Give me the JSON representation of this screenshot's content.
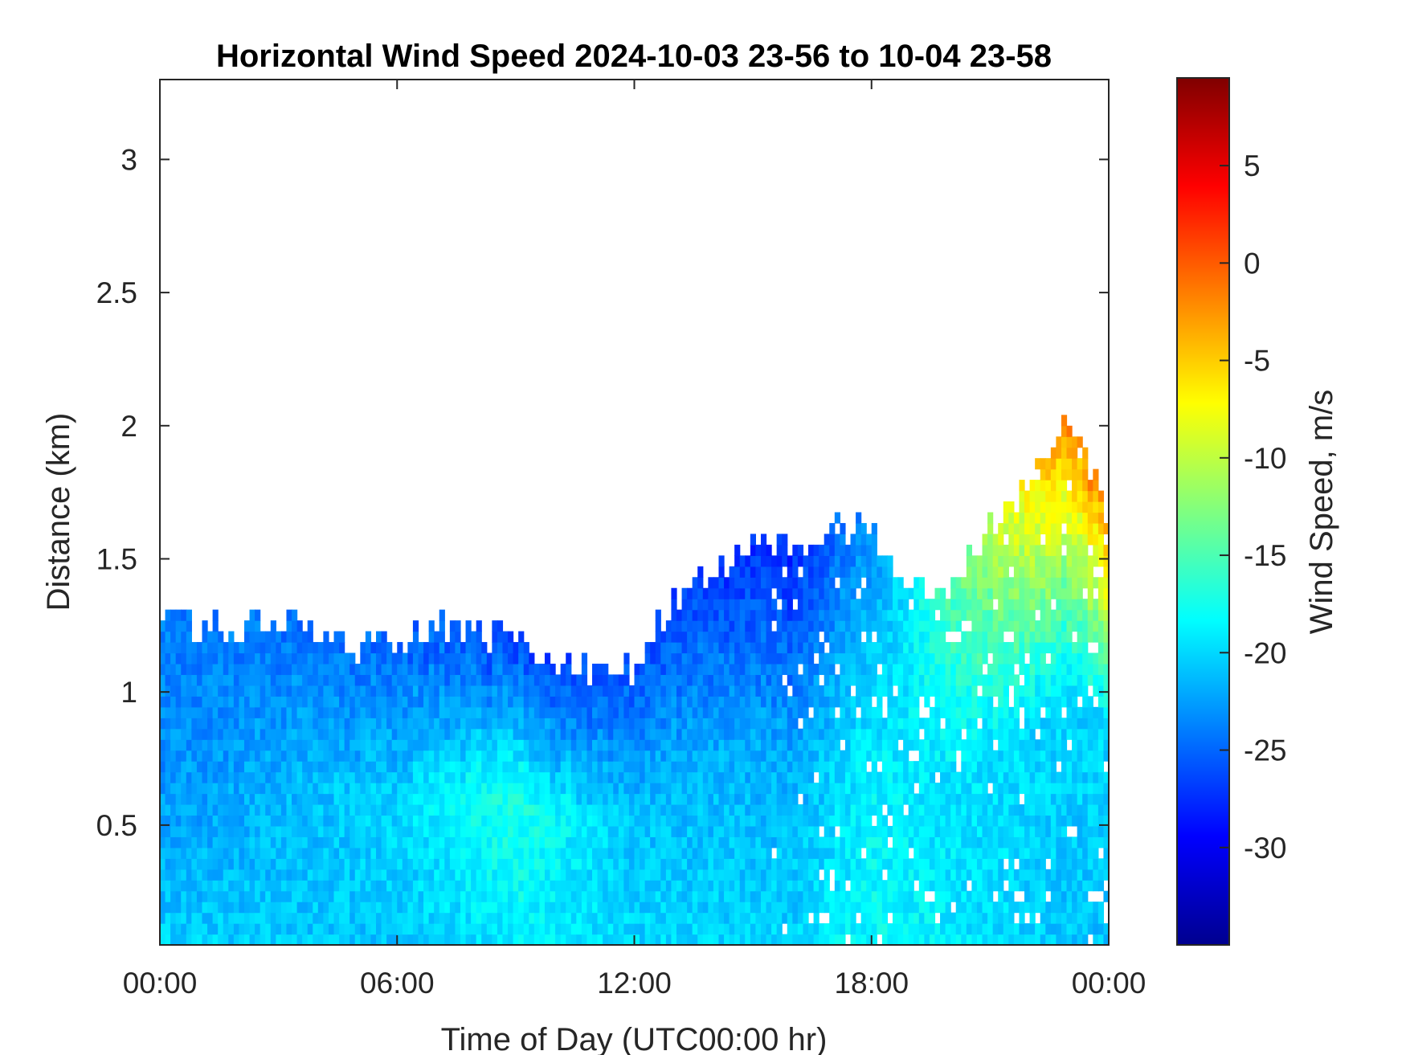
{
  "chart_data": {
    "type": "heatmap",
    "title": "Horizontal Wind Speed 2024-10-03 23-56 to 10-04 23-58",
    "xlabel": "Time of Day (UTC00:00 hr)",
    "ylabel": "Distance (km)",
    "x_range_hours": [
      0,
      24
    ],
    "xlim": [
      0,
      24
    ],
    "x_ticks": [
      0,
      6,
      12,
      18,
      24
    ],
    "x_tick_labels": [
      "00:00",
      "06:00",
      "12:00",
      "18:00",
      "00:00"
    ],
    "ylim": [
      0.05,
      3.3
    ],
    "y_ticks": [
      0.5,
      1,
      1.5,
      2,
      2.5,
      3
    ],
    "y_tick_labels": [
      "0.5",
      "1",
      "1.5",
      "2",
      "2.5",
      "3"
    ],
    "colormap": "jet",
    "colorbar": {
      "label": "Wind Speed, m/s",
      "clim": [
        -35,
        9.5
      ],
      "ticks": [
        5,
        0,
        -5,
        -10,
        -15,
        -20,
        -25,
        -30
      ],
      "tick_labels": [
        "5",
        "0",
        "-5",
        "-10",
        "-15",
        "-20",
        "-25",
        "-30"
      ]
    },
    "grid": false,
    "cloud_top_km": [
      [
        0,
        1.33
      ],
      [
        1,
        1.25
      ],
      [
        2,
        1.22
      ],
      [
        3,
        1.28
      ],
      [
        4,
        1.25
      ],
      [
        5,
        1.18
      ],
      [
        6,
        1.2
      ],
      [
        7,
        1.24
      ],
      [
        8,
        1.22
      ],
      [
        9,
        1.2
      ],
      [
        10,
        1.13
      ],
      [
        11,
        1.05
      ],
      [
        12,
        1.1
      ],
      [
        13,
        1.35
      ],
      [
        14,
        1.45
      ],
      [
        15,
        1.57
      ],
      [
        16,
        1.55
      ],
      [
        17,
        1.62
      ],
      [
        18,
        1.6
      ],
      [
        19,
        1.4
      ],
      [
        20,
        1.38
      ],
      [
        21,
        1.62
      ],
      [
        22,
        1.8
      ],
      [
        23,
        2.05
      ],
      [
        24,
        1.7
      ]
    ],
    "speed_profile": [
      {
        "hour": 0,
        "surface": -20,
        "low_jet": -23,
        "top": -24
      },
      {
        "hour": 6,
        "surface": -21,
        "low_jet": -20,
        "top": -25
      },
      {
        "hour": 9,
        "surface": -19,
        "low_jet": -17,
        "top": -27
      },
      {
        "hour": 12,
        "surface": -20,
        "low_jet": -21,
        "top": -26
      },
      {
        "hour": 16,
        "surface": -20,
        "low_jet": -22,
        "top": -28
      },
      {
        "hour": 18,
        "surface": -18,
        "low_jet": -19,
        "top": -23
      },
      {
        "hour": 23,
        "surface": -21,
        "low_jet": -20,
        "top": -2
      }
    ],
    "annotations": []
  }
}
